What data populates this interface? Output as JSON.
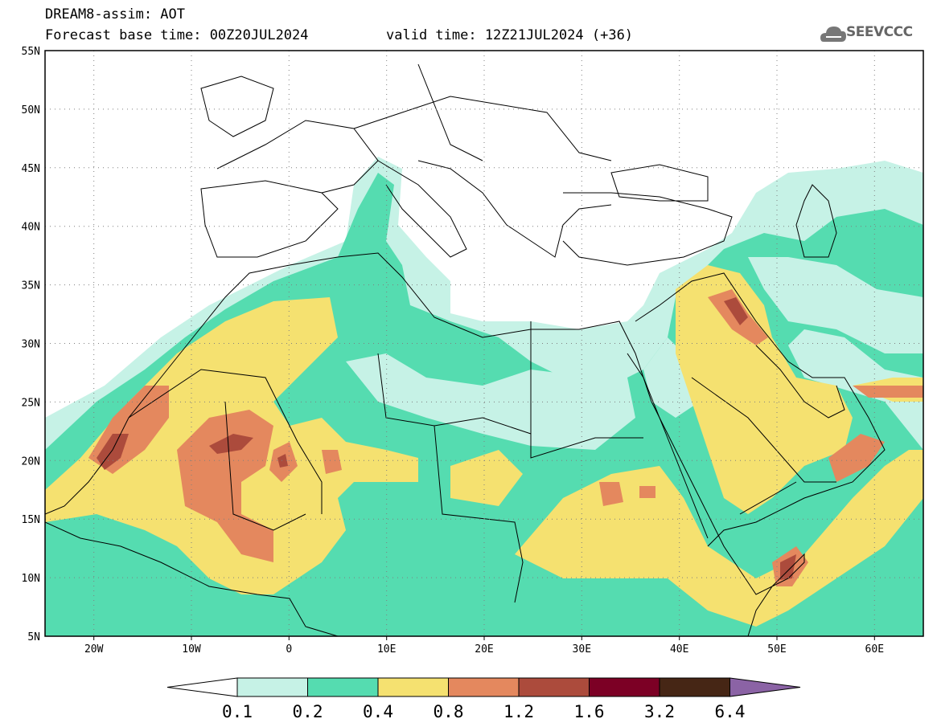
{
  "header": {
    "line1": "DREAM8-assim: AOT",
    "line2": "Forecast base time: 00Z20JUL2024",
    "valid": "valid time: 12Z21JUL2024 (+36)"
  },
  "logo": {
    "text": "SEEVCCC",
    "icon": "cloud-icon"
  },
  "map": {
    "lon_range": [
      -25,
      65
    ],
    "lat_range": [
      5,
      55
    ],
    "lon_ticks": [
      "20W",
      "10W",
      "0",
      "10E",
      "20E",
      "30E",
      "40E",
      "50E",
      "60E"
    ],
    "lat_ticks": [
      "55N",
      "50N",
      "45N",
      "40N",
      "35N",
      "30N",
      "25N",
      "20N",
      "15N",
      "10N",
      "5N"
    ],
    "grid": "dotted"
  },
  "colorbar": {
    "labels": [
      "0.1",
      "0.2",
      "0.4",
      "0.8",
      "1.2",
      "1.6",
      "3.2",
      "6.4"
    ],
    "colors": [
      "#c6f2e6",
      "#55dcb0",
      "#f5e170",
      "#e4885e",
      "#ac4b3c",
      "#7c0025",
      "#462615",
      "#8b63a5"
    ]
  }
}
